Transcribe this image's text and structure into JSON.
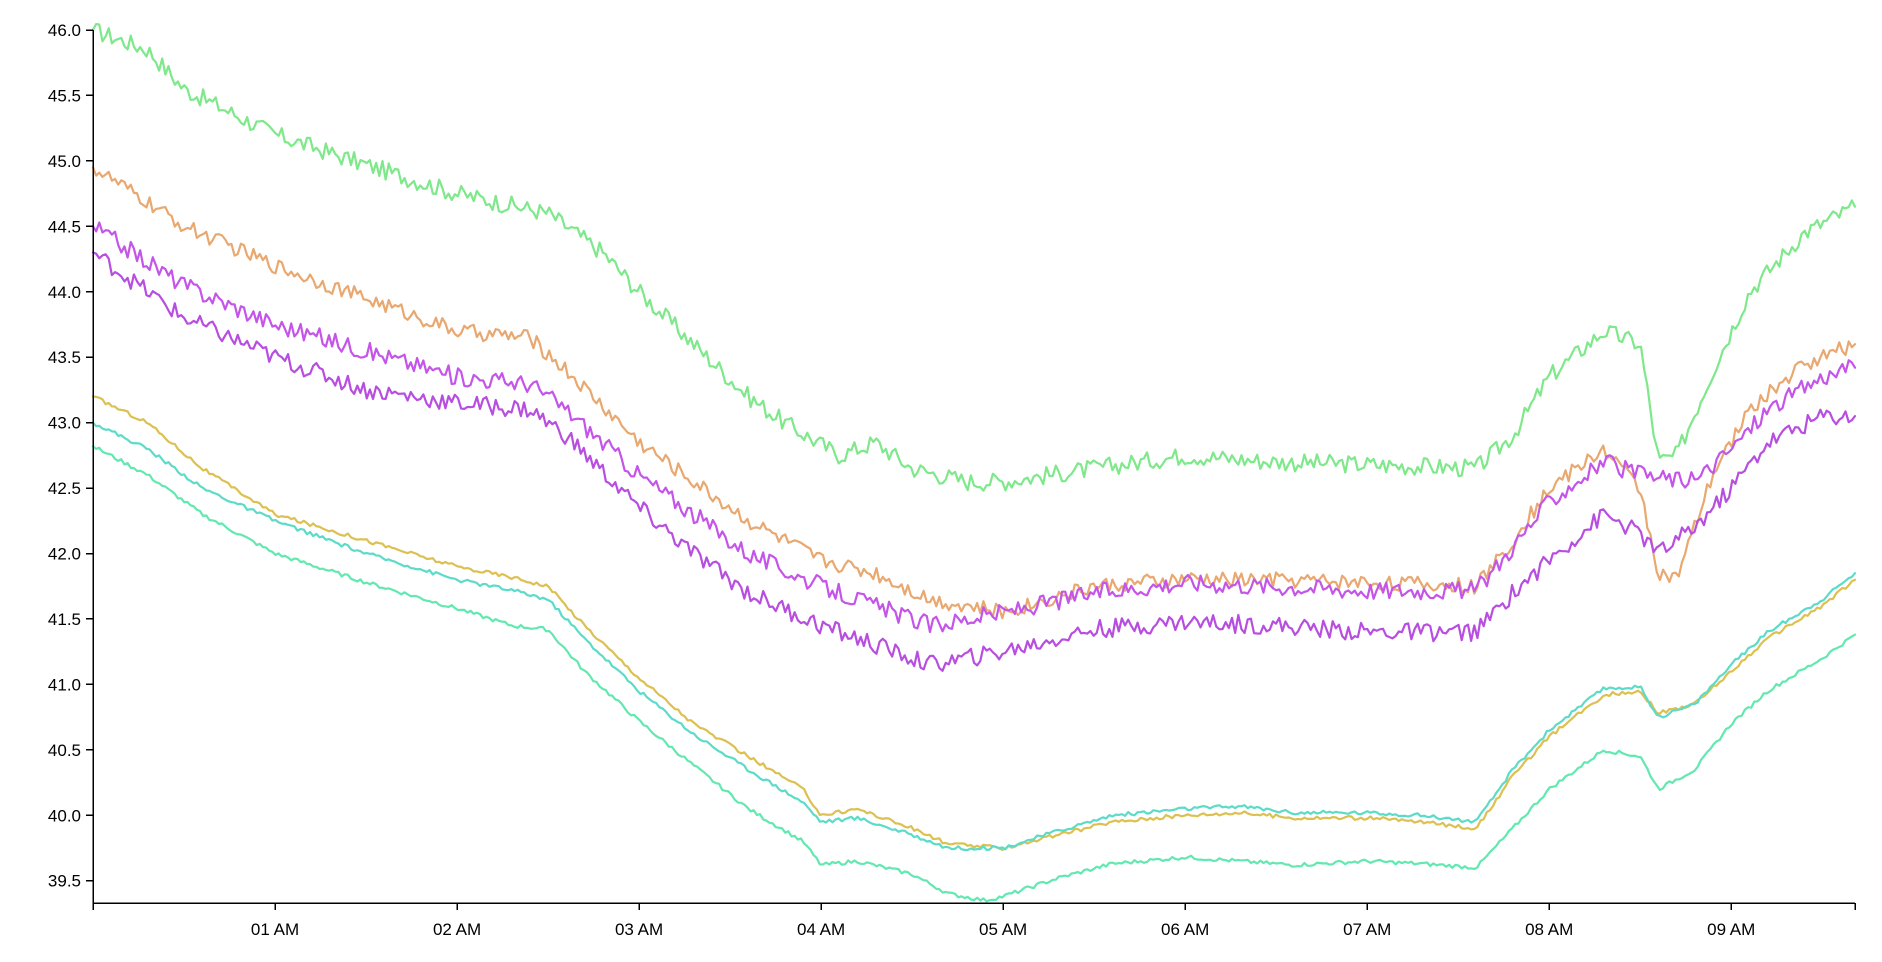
{
  "chart_data": {
    "type": "line",
    "title": "",
    "xlabel": "",
    "ylabel": "",
    "x_range_hours": [
      0.0,
      9.68
    ],
    "ylim": [
      39.33,
      46.0
    ],
    "y_ticks": [
      "39.5",
      "40.0",
      "40.5",
      "41.0",
      "41.5",
      "42.0",
      "42.5",
      "43.0",
      "43.5",
      "44.0",
      "44.5",
      "45.0",
      "45.5",
      "46.0"
    ],
    "x_ticks": [
      {
        "hour": 1,
        "label": "01 AM"
      },
      {
        "hour": 2,
        "label": "02 AM"
      },
      {
        "hour": 3,
        "label": "03 AM"
      },
      {
        "hour": 4,
        "label": "04 AM"
      },
      {
        "hour": 5,
        "label": "05 AM"
      },
      {
        "hour": 6,
        "label": "06 AM"
      },
      {
        "hour": 7,
        "label": "07 AM"
      },
      {
        "hour": 8,
        "label": "08 AM"
      },
      {
        "hour": 9,
        "label": "09 AM"
      }
    ],
    "grid": false,
    "legend": "none",
    "series": [
      {
        "color": "#7ee88a",
        "noise": 0.07,
        "points": [
          [
            0.0,
            46.0
          ],
          [
            0.3,
            45.85
          ],
          [
            0.5,
            45.55
          ],
          [
            1.0,
            45.2
          ],
          [
            1.5,
            44.97
          ],
          [
            2.0,
            44.75
          ],
          [
            2.5,
            44.6
          ],
          [
            2.8,
            44.3
          ],
          [
            3.0,
            44.0
          ],
          [
            3.3,
            43.6
          ],
          [
            3.6,
            43.2
          ],
          [
            3.8,
            43.0
          ],
          [
            4.1,
            42.75
          ],
          [
            4.3,
            42.85
          ],
          [
            4.5,
            42.65
          ],
          [
            4.8,
            42.55
          ],
          [
            5.0,
            42.55
          ],
          [
            5.5,
            42.65
          ],
          [
            6.0,
            42.75
          ],
          [
            6.5,
            42.7
          ],
          [
            7.0,
            42.68
          ],
          [
            7.6,
            42.65
          ],
          [
            7.8,
            42.9
          ],
          [
            8.0,
            43.35
          ],
          [
            8.3,
            43.7
          ],
          [
            8.5,
            43.6
          ],
          [
            8.6,
            42.7
          ],
          [
            8.7,
            42.75
          ],
          [
            8.9,
            43.4
          ],
          [
            9.1,
            44.0
          ],
          [
            9.4,
            44.45
          ],
          [
            9.68,
            44.65
          ]
        ]
      },
      {
        "color": "#e8a870",
        "noise": 0.06,
        "points": [
          [
            0.0,
            44.95
          ],
          [
            0.5,
            44.5
          ],
          [
            1.0,
            44.2
          ],
          [
            1.5,
            43.95
          ],
          [
            2.0,
            43.7
          ],
          [
            2.4,
            43.65
          ],
          [
            2.6,
            43.4
          ],
          [
            3.0,
            42.85
          ],
          [
            3.3,
            42.55
          ],
          [
            3.6,
            42.25
          ],
          [
            4.0,
            41.95
          ],
          [
            4.3,
            41.85
          ],
          [
            4.6,
            41.65
          ],
          [
            5.0,
            41.55
          ],
          [
            5.5,
            41.75
          ],
          [
            6.0,
            41.8
          ],
          [
            6.5,
            41.8
          ],
          [
            7.0,
            41.78
          ],
          [
            7.6,
            41.75
          ],
          [
            7.8,
            42.1
          ],
          [
            8.0,
            42.5
          ],
          [
            8.3,
            42.8
          ],
          [
            8.5,
            42.5
          ],
          [
            8.6,
            41.85
          ],
          [
            8.7,
            41.8
          ],
          [
            8.9,
            42.6
          ],
          [
            9.1,
            43.1
          ],
          [
            9.4,
            43.45
          ],
          [
            9.68,
            43.6
          ]
        ]
      },
      {
        "color": "#c455e8",
        "noise": 0.07,
        "points": [
          [
            0.0,
            44.5
          ],
          [
            0.5,
            44.05
          ],
          [
            1.0,
            43.75
          ],
          [
            1.5,
            43.55
          ],
          [
            2.0,
            43.35
          ],
          [
            2.4,
            43.3
          ],
          [
            2.6,
            43.1
          ],
          [
            3.0,
            42.6
          ],
          [
            3.3,
            42.3
          ],
          [
            3.6,
            42.0
          ],
          [
            4.0,
            41.75
          ],
          [
            4.3,
            41.6
          ],
          [
            4.6,
            41.45
          ],
          [
            5.0,
            41.55
          ],
          [
            5.5,
            41.7
          ],
          [
            6.0,
            41.78
          ],
          [
            6.5,
            41.75
          ],
          [
            7.0,
            41.72
          ],
          [
            7.6,
            41.72
          ],
          [
            7.8,
            42.05
          ],
          [
            8.0,
            42.4
          ],
          [
            8.3,
            42.7
          ],
          [
            8.5,
            42.6
          ],
          [
            8.8,
            42.55
          ],
          [
            9.0,
            42.8
          ],
          [
            9.2,
            43.1
          ],
          [
            9.5,
            43.35
          ],
          [
            9.68,
            43.42
          ]
        ]
      },
      {
        "color": "#b84ee0",
        "noise": 0.07,
        "points": [
          [
            0.0,
            44.3
          ],
          [
            0.5,
            43.8
          ],
          [
            1.0,
            43.5
          ],
          [
            1.5,
            43.25
          ],
          [
            2.0,
            43.15
          ],
          [
            2.4,
            43.1
          ],
          [
            2.6,
            42.9
          ],
          [
            3.0,
            42.35
          ],
          [
            3.3,
            42.0
          ],
          [
            3.6,
            41.7
          ],
          [
            4.0,
            41.45
          ],
          [
            4.3,
            41.3
          ],
          [
            4.6,
            41.15
          ],
          [
            5.0,
            41.25
          ],
          [
            5.5,
            41.42
          ],
          [
            6.0,
            41.48
          ],
          [
            6.5,
            41.45
          ],
          [
            7.0,
            41.4
          ],
          [
            7.6,
            41.4
          ],
          [
            7.8,
            41.7
          ],
          [
            8.0,
            41.95
          ],
          [
            8.3,
            42.3
          ],
          [
            8.5,
            42.15
          ],
          [
            8.6,
            42.0
          ],
          [
            8.8,
            42.2
          ],
          [
            9.0,
            42.5
          ],
          [
            9.2,
            42.85
          ],
          [
            9.5,
            43.05
          ],
          [
            9.68,
            43.05
          ]
        ]
      },
      {
        "color": "#dcc050",
        "noise": 0.015,
        "points": [
          [
            0.0,
            43.2
          ],
          [
            0.3,
            43.0
          ],
          [
            0.6,
            42.65
          ],
          [
            1.0,
            42.3
          ],
          [
            1.5,
            42.1
          ],
          [
            2.0,
            41.9
          ],
          [
            2.3,
            41.82
          ],
          [
            2.5,
            41.75
          ],
          [
            2.7,
            41.45
          ],
          [
            3.0,
            41.05
          ],
          [
            3.3,
            40.7
          ],
          [
            3.6,
            40.45
          ],
          [
            3.9,
            40.2
          ],
          [
            4.0,
            40.0
          ],
          [
            4.2,
            40.05
          ],
          [
            4.5,
            39.9
          ],
          [
            4.7,
            39.78
          ],
          [
            5.0,
            39.75
          ],
          [
            5.3,
            39.85
          ],
          [
            5.6,
            39.95
          ],
          [
            6.0,
            40.0
          ],
          [
            6.3,
            40.02
          ],
          [
            6.6,
            39.98
          ],
          [
            7.0,
            39.98
          ],
          [
            7.3,
            39.95
          ],
          [
            7.6,
            39.9
          ],
          [
            7.8,
            40.3
          ],
          [
            8.0,
            40.6
          ],
          [
            8.3,
            40.92
          ],
          [
            8.5,
            40.95
          ],
          [
            8.6,
            40.78
          ],
          [
            8.8,
            40.85
          ],
          [
            9.0,
            41.1
          ],
          [
            9.2,
            41.35
          ],
          [
            9.5,
            41.6
          ],
          [
            9.68,
            41.8
          ]
        ]
      },
      {
        "color": "#5cdcc8",
        "noise": 0.015,
        "points": [
          [
            0.0,
            43.0
          ],
          [
            0.3,
            42.8
          ],
          [
            0.6,
            42.5
          ],
          [
            1.0,
            42.25
          ],
          [
            1.5,
            42.0
          ],
          [
            2.0,
            41.8
          ],
          [
            2.3,
            41.72
          ],
          [
            2.5,
            41.65
          ],
          [
            2.7,
            41.35
          ],
          [
            3.0,
            40.95
          ],
          [
            3.3,
            40.62
          ],
          [
            3.6,
            40.35
          ],
          [
            3.9,
            40.1
          ],
          [
            4.0,
            39.95
          ],
          [
            4.2,
            39.98
          ],
          [
            4.5,
            39.85
          ],
          [
            4.7,
            39.75
          ],
          [
            5.0,
            39.75
          ],
          [
            5.3,
            39.88
          ],
          [
            5.6,
            40.0
          ],
          [
            6.0,
            40.05
          ],
          [
            6.3,
            40.07
          ],
          [
            6.6,
            40.02
          ],
          [
            7.0,
            40.02
          ],
          [
            7.3,
            40.0
          ],
          [
            7.6,
            39.95
          ],
          [
            7.8,
            40.35
          ],
          [
            8.0,
            40.65
          ],
          [
            8.3,
            40.97
          ],
          [
            8.5,
            40.98
          ],
          [
            8.6,
            40.75
          ],
          [
            8.8,
            40.85
          ],
          [
            9.0,
            41.15
          ],
          [
            9.2,
            41.4
          ],
          [
            9.5,
            41.65
          ],
          [
            9.68,
            41.85
          ]
        ]
      },
      {
        "color": "#62e8b0",
        "noise": 0.015,
        "points": [
          [
            0.0,
            42.82
          ],
          [
            0.3,
            42.6
          ],
          [
            0.6,
            42.3
          ],
          [
            1.0,
            42.0
          ],
          [
            1.5,
            41.78
          ],
          [
            2.0,
            41.58
          ],
          [
            2.3,
            41.45
          ],
          [
            2.5,
            41.42
          ],
          [
            2.7,
            41.1
          ],
          [
            3.0,
            40.72
          ],
          [
            3.3,
            40.38
          ],
          [
            3.6,
            40.05
          ],
          [
            3.9,
            39.8
          ],
          [
            4.0,
            39.62
          ],
          [
            4.2,
            39.65
          ],
          [
            4.5,
            39.55
          ],
          [
            4.7,
            39.4
          ],
          [
            4.9,
            39.35
          ],
          [
            5.0,
            39.38
          ],
          [
            5.3,
            39.52
          ],
          [
            5.6,
            39.63
          ],
          [
            6.0,
            39.68
          ],
          [
            6.3,
            39.65
          ],
          [
            6.6,
            39.62
          ],
          [
            7.0,
            39.65
          ],
          [
            7.3,
            39.63
          ],
          [
            7.6,
            39.6
          ],
          [
            7.8,
            39.9
          ],
          [
            8.0,
            40.2
          ],
          [
            8.3,
            40.5
          ],
          [
            8.5,
            40.45
          ],
          [
            8.6,
            40.2
          ],
          [
            8.8,
            40.35
          ],
          [
            9.0,
            40.7
          ],
          [
            9.2,
            40.95
          ],
          [
            9.5,
            41.2
          ],
          [
            9.68,
            41.38
          ]
        ]
      }
    ]
  }
}
